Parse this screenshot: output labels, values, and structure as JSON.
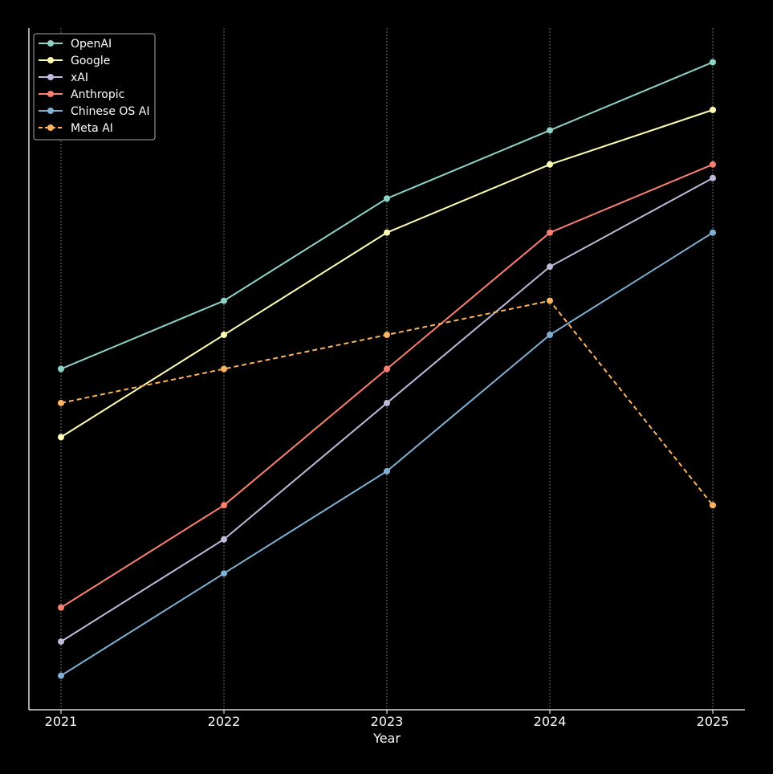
{
  "chart_data": {
    "type": "line",
    "title": "",
    "xlabel": "Year",
    "ylabel": "",
    "x": [
      "2021",
      "2022",
      "2023",
      "2024",
      "2025"
    ],
    "ylim": [
      0,
      20
    ],
    "y_ticks_visible": false,
    "grid": "vertical dotted",
    "legend_position": "top-left",
    "series": [
      {
        "name": "OpenAI",
        "color": "#8dd3c7",
        "dashed": false,
        "values": [
          10,
          12,
          15,
          17,
          19
        ]
      },
      {
        "name": "Google",
        "color": "#ffffb3",
        "dashed": false,
        "values": [
          8,
          11,
          14,
          16,
          17.6
        ]
      },
      {
        "name": "xAI",
        "color": "#bebada",
        "dashed": false,
        "values": [
          2,
          5,
          9,
          13,
          15.6
        ]
      },
      {
        "name": "Anthropic",
        "color": "#fb8072",
        "dashed": false,
        "values": [
          3,
          6,
          10,
          14,
          16
        ]
      },
      {
        "name": "Chinese OS AI",
        "color": "#80b1d3",
        "dashed": false,
        "values": [
          1,
          4,
          7,
          11,
          14
        ]
      },
      {
        "name": "Meta AI",
        "color": "#fdb462",
        "dashed": true,
        "values": [
          9,
          10,
          11,
          12,
          6
        ]
      }
    ]
  }
}
